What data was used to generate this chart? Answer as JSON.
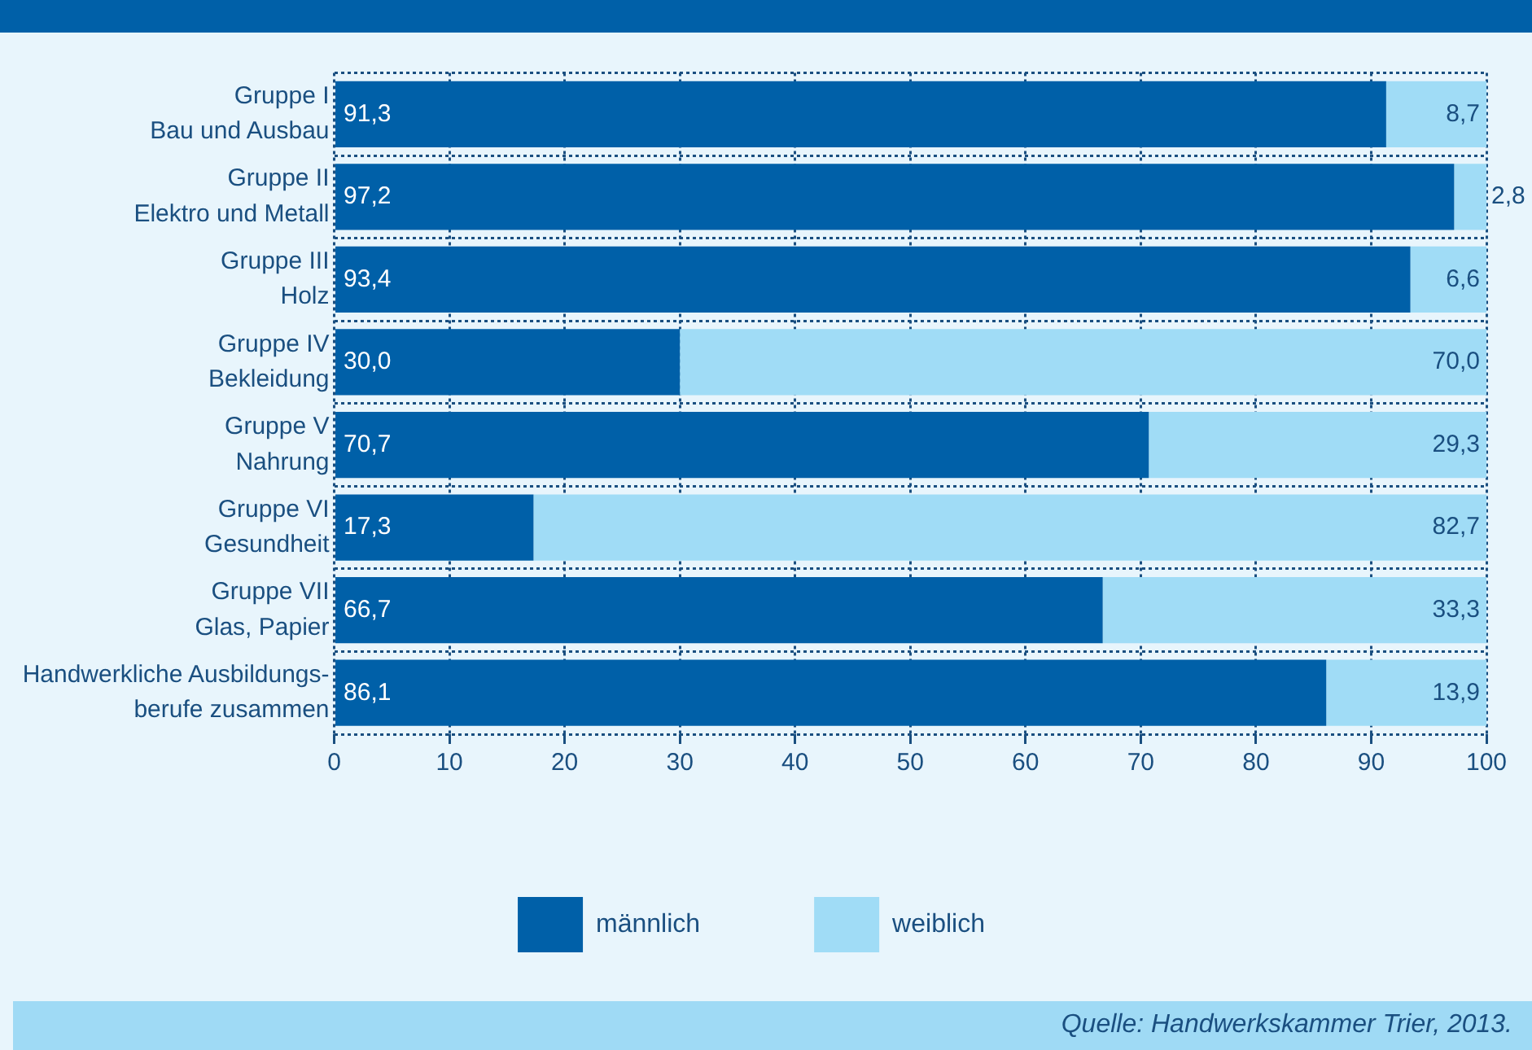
{
  "chart_data": {
    "type": "bar",
    "orientation": "horizontal",
    "stacked": true,
    "categories": [
      "Gruppe I\nBau und Ausbau",
      "Gruppe II\nElektro und Metall",
      "Gruppe III\nHolz",
      "Gruppe IV\nBekleidung",
      "Gruppe V\nNahrung",
      "Gruppe VI\nGesundheit",
      "Gruppe VII\nGlas, Papier",
      "Handwerkliche Ausbildungs-\nberufe zusammen"
    ],
    "series": [
      {
        "name": "männlich",
        "color": "#0060a8",
        "values": [
          91.3,
          97.2,
          93.4,
          30.0,
          70.7,
          17.3,
          66.7,
          86.1
        ],
        "value_labels": [
          "91,3",
          "97,2",
          "93,4",
          "30,0",
          "70,7",
          "17,3",
          "66,7",
          "86,1"
        ]
      },
      {
        "name": "weiblich",
        "color": "#a0dcf6",
        "values": [
          8.7,
          2.8,
          6.6,
          70.0,
          29.3,
          82.7,
          33.3,
          13.9
        ],
        "value_labels": [
          "8,7",
          "2,8",
          "6,6",
          "70,0",
          "29,3",
          "82,7",
          "33,3",
          "13,9"
        ]
      }
    ],
    "xlim": [
      0,
      100
    ],
    "xticks": [
      0,
      10,
      20,
      30,
      40,
      50,
      60,
      70,
      80,
      90,
      100
    ],
    "grid": true,
    "legend": "bottom",
    "annotations": [
      "Quelle: Handwerkskammer Trier, 2013."
    ]
  }
}
